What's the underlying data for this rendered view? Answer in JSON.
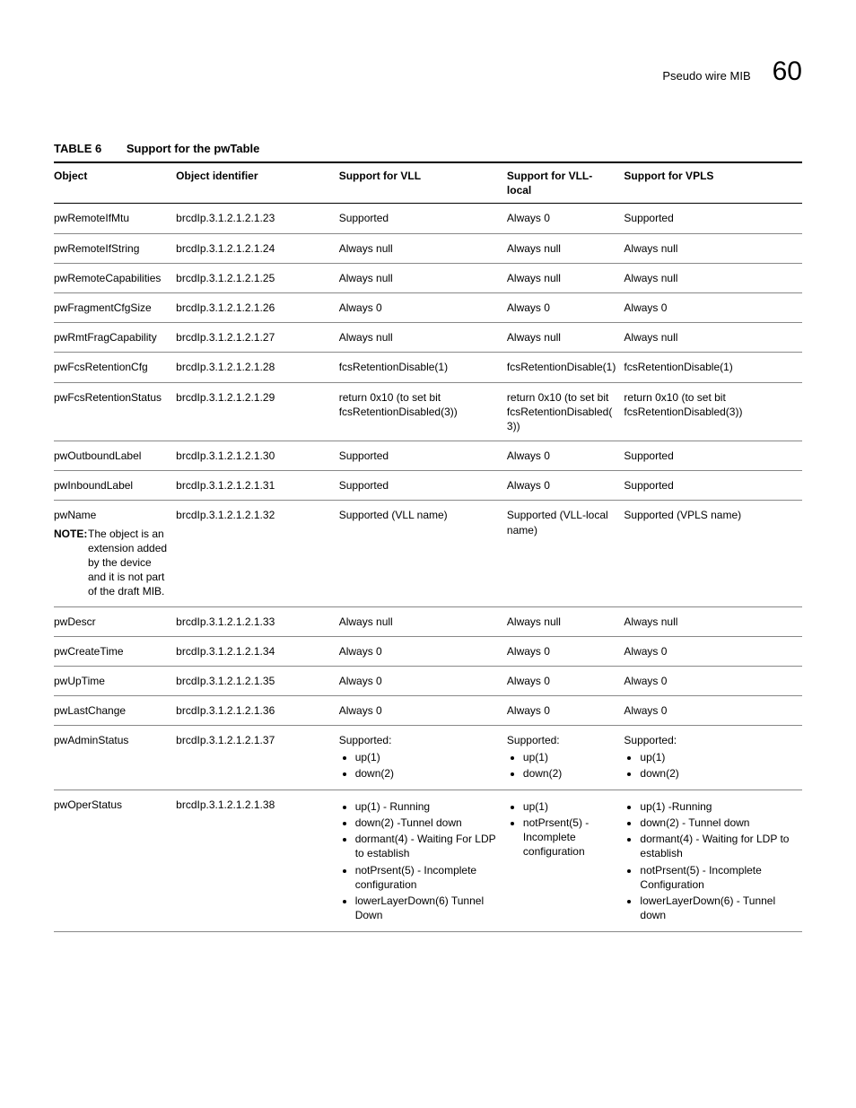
{
  "header": {
    "title": "Pseudo wire MIB",
    "page_number": "60"
  },
  "caption": {
    "label": "TABLE 6",
    "text": "Support for the pwTable"
  },
  "columns": [
    "Object",
    "Object identifier",
    "Support for VLL",
    "Support for VLL-local",
    "Support for VPLS"
  ],
  "rows": [
    {
      "object": "pwRemoteIfMtu",
      "oid": "brcdIp.3.1.2.1.2.1.23",
      "vll": "Supported",
      "vll_local": "Always 0",
      "vpls": "Supported"
    },
    {
      "object": "pwRemoteIfString",
      "oid": "brcdIp.3.1.2.1.2.1.24",
      "vll": "Always null",
      "vll_local": "Always null",
      "vpls": "Always null"
    },
    {
      "object": "pwRemoteCapabilities",
      "oid": "brcdIp.3.1.2.1.2.1.25",
      "vll": "Always null",
      "vll_local": "Always null",
      "vpls": "Always null"
    },
    {
      "object": "pwFragmentCfgSize",
      "oid": "brcdIp.3.1.2.1.2.1.26",
      "vll": "Always 0",
      "vll_local": "Always 0",
      "vpls": "Always 0"
    },
    {
      "object": "pwRmtFragCapability",
      "oid": "brcdIp.3.1.2.1.2.1.27",
      "vll": "Always null",
      "vll_local": "Always null",
      "vpls": "Always null"
    },
    {
      "object": "pwFcsRetentionCfg",
      "oid": "brcdIp.3.1.2.1.2.1.28",
      "vll": "fcsRetentionDisable(1)",
      "vll_local": "fcsRetentionDisable(1)",
      "vpls": "fcsRetentionDisable(1)"
    },
    {
      "object": "pwFcsRetentionStatus",
      "oid": "brcdIp.3.1.2.1.2.1.29",
      "vll": "return 0x10 (to set bit fcsRetentionDisabled(3))",
      "vll_local": "return 0x10 (to set bit fcsRetentionDisabled(3))",
      "vpls": "return 0x10 (to set bit fcsRetentionDisabled(3))"
    },
    {
      "object": "pwOutboundLabel",
      "oid": "brcdIp.3.1.2.1.2.1.30",
      "vll": "Supported",
      "vll_local": "Always 0",
      "vpls": "Supported"
    },
    {
      "object": "pwInboundLabel",
      "oid": "brcdIp.3.1.2.1.2.1.31",
      "vll": "Supported",
      "vll_local": "Always 0",
      "vpls": "Supported"
    },
    {
      "object": "pwName",
      "note_label": "NOTE:",
      "note_text": "The object is an extension added by the device and it is not part of the draft MIB.",
      "oid": "brcdIp.3.1.2.1.2.1.32",
      "vll": "Supported (VLL name)",
      "vll_local": "Supported (VLL-local name)",
      "vpls": "Supported (VPLS name)"
    },
    {
      "object": "pwDescr",
      "oid": "brcdIp.3.1.2.1.2.1.33",
      "vll": "Always null",
      "vll_local": "Always null",
      "vpls": "Always null"
    },
    {
      "object": "pwCreateTime",
      "oid": "brcdIp.3.1.2.1.2.1.34",
      "vll": "Always 0",
      "vll_local": "Always 0",
      "vpls": "Always 0"
    },
    {
      "object": "pwUpTime",
      "oid": "brcdIp.3.1.2.1.2.1.35",
      "vll": "Always 0",
      "vll_local": "Always 0",
      "vpls": "Always 0"
    },
    {
      "object": "pwLastChange",
      "oid": "brcdIp.3.1.2.1.2.1.36",
      "vll": "Always 0",
      "vll_local": "Always 0",
      "vpls": "Always 0"
    },
    {
      "object": "pwAdminStatus",
      "oid": "brcdIp.3.1.2.1.2.1.37",
      "vll_pre": "Supported:",
      "vll_list": [
        "up(1)",
        "down(2)"
      ],
      "vll_local_pre": "Supported:",
      "vll_local_list": [
        "up(1)",
        "down(2)"
      ],
      "vpls_pre": "Supported:",
      "vpls_list": [
        "up(1)",
        "down(2)"
      ]
    },
    {
      "object": "pwOperStatus",
      "oid": "brcdIp.3.1.2.1.2.1.38",
      "vll_list": [
        "up(1) - Running",
        "down(2) -Tunnel down",
        "dormant(4) - Waiting For LDP to establish",
        "notPrsent(5) - Incomplete configuration",
        "lowerLayerDown(6) Tunnel Down"
      ],
      "vll_local_list": [
        "up(1)",
        "notPrsent(5) - Incomplete configuration"
      ],
      "vpls_list": [
        "up(1) -Running",
        "down(2) - Tunnel down",
        "dormant(4) - Waiting for LDP to establish",
        "notPrsent(5) - Incomplete Configuration",
        "lowerLayerDown(6) - Tunnel down"
      ]
    }
  ]
}
